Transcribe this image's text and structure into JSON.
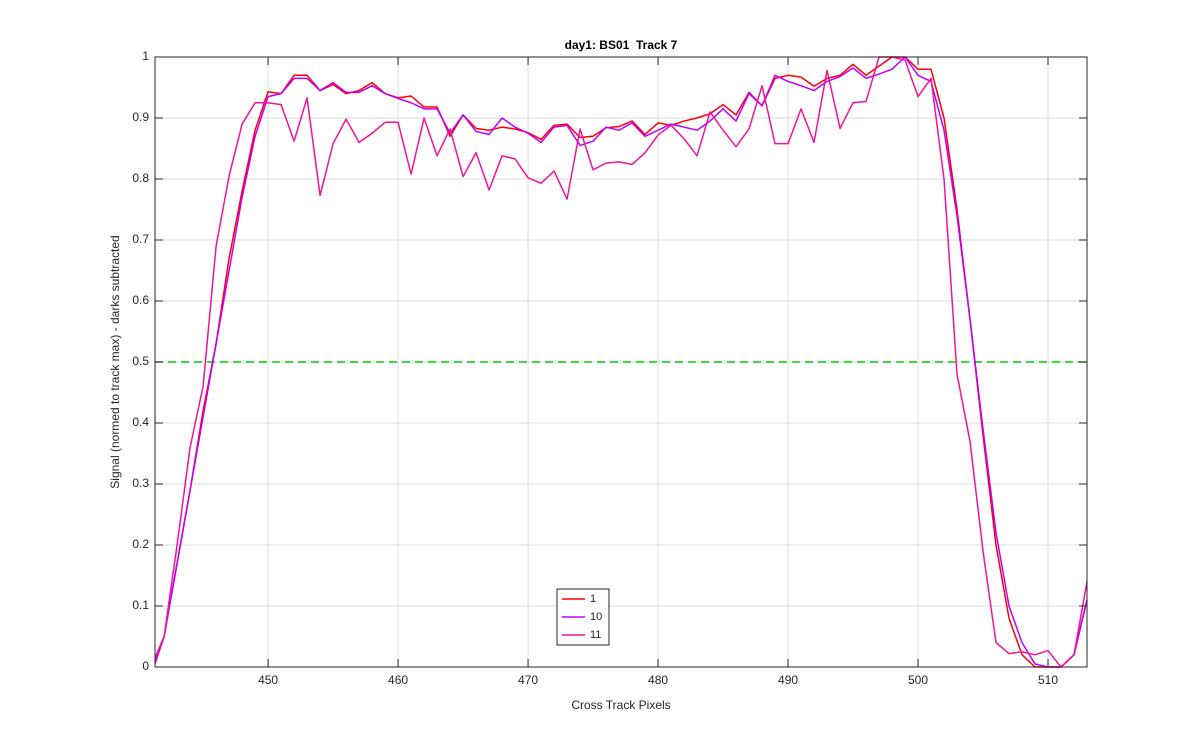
{
  "chart_data": {
    "type": "line",
    "title": "day1: BS01  Track 7",
    "x_label": "Cross Track Pixels",
    "y_label": "Signal (normed to track max) - darks subtracted",
    "xlim": [
      441.3,
      513
    ],
    "ylim": [
      0,
      1
    ],
    "xticks": [
      450,
      460,
      470,
      480,
      490,
      500,
      510
    ],
    "yticks": [
      0,
      0.1,
      0.2,
      0.3,
      0.4,
      0.5,
      0.6,
      0.7,
      0.8,
      0.9,
      1
    ],
    "grid": true,
    "legend_position": "bottom-center",
    "reference_line": {
      "y": 0.5,
      "color": "#00cc00"
    },
    "x": [
      441.3,
      442,
      443,
      444,
      445,
      446,
      447,
      448,
      449,
      450,
      451,
      452,
      453,
      454,
      455,
      456,
      457,
      458,
      459,
      460,
      461,
      462,
      463,
      464,
      465,
      466,
      467,
      468,
      469,
      470,
      471,
      472,
      473,
      474,
      475,
      476,
      477,
      478,
      479,
      480,
      481,
      482,
      483,
      484,
      485,
      486,
      487,
      488,
      489,
      490,
      491,
      492,
      493,
      494,
      495,
      496,
      497,
      498,
      499,
      500,
      501,
      502,
      503,
      504,
      505,
      506,
      507,
      508,
      509,
      510,
      511,
      512,
      513
    ],
    "series": [
      {
        "name": "1",
        "color": "#ff0000",
        "values": [
          0.01,
          0.05,
          0.17,
          0.29,
          0.42,
          0.53,
          0.67,
          0.78,
          0.88,
          0.943,
          0.94,
          0.97,
          0.97,
          0.945,
          0.955,
          0.94,
          0.945,
          0.958,
          0.94,
          0.933,
          0.936,
          0.918,
          0.918,
          0.87,
          0.905,
          0.883,
          0.88,
          0.885,
          0.882,
          0.876,
          0.865,
          0.888,
          0.89,
          0.868,
          0.87,
          0.884,
          0.886,
          0.895,
          0.873,
          0.892,
          0.888,
          0.895,
          0.9,
          0.907,
          0.922,
          0.905,
          0.942,
          0.92,
          0.965,
          0.97,
          0.967,
          0.952,
          0.965,
          0.97,
          0.988,
          0.97,
          0.985,
          1.0,
          1.0,
          0.98,
          0.98,
          0.9,
          0.75,
          0.57,
          0.38,
          0.2,
          0.08,
          0.02,
          0.0,
          0.0,
          0.0,
          0.02,
          0.11
        ]
      },
      {
        "name": "10",
        "color": "#c000ff",
        "values": [
          0.005,
          0.05,
          0.17,
          0.29,
          0.41,
          0.53,
          0.65,
          0.77,
          0.87,
          0.935,
          0.94,
          0.965,
          0.965,
          0.945,
          0.958,
          0.942,
          0.942,
          0.953,
          0.94,
          0.932,
          0.925,
          0.915,
          0.915,
          0.875,
          0.905,
          0.878,
          0.873,
          0.9,
          0.885,
          0.875,
          0.86,
          0.885,
          0.888,
          0.855,
          0.862,
          0.885,
          0.88,
          0.892,
          0.87,
          0.88,
          0.89,
          0.885,
          0.88,
          0.895,
          0.915,
          0.895,
          0.94,
          0.92,
          0.97,
          0.96,
          0.953,
          0.945,
          0.96,
          0.968,
          0.982,
          0.965,
          0.972,
          0.98,
          1.0,
          0.97,
          0.96,
          0.88,
          0.74,
          0.57,
          0.39,
          0.22,
          0.1,
          0.04,
          0.005,
          0.0,
          0.0,
          0.02,
          0.11
        ]
      },
      {
        "name": "11",
        "color": "#f0149c",
        "values": [
          0.015,
          0.05,
          0.2,
          0.36,
          0.46,
          0.69,
          0.805,
          0.89,
          0.925,
          0.925,
          0.922,
          0.862,
          0.933,
          0.773,
          0.858,
          0.898,
          0.86,
          0.875,
          0.893,
          0.893,
          0.808,
          0.9,
          0.838,
          0.882,
          0.804,
          0.843,
          0.782,
          0.838,
          0.833,
          0.802,
          0.793,
          0.813,
          0.767,
          0.882,
          0.815,
          0.826,
          0.828,
          0.824,
          0.843,
          0.872,
          0.888,
          0.866,
          0.838,
          0.91,
          0.88,
          0.853,
          0.882,
          0.953,
          0.858,
          0.858,
          0.915,
          0.86,
          0.978,
          0.883,
          0.925,
          0.927,
          1.0,
          1.0,
          0.995,
          0.935,
          0.965,
          0.8,
          0.48,
          0.37,
          0.19,
          0.04,
          0.022,
          0.025,
          0.02,
          0.027,
          0.0,
          0.02,
          0.14
        ]
      }
    ]
  }
}
